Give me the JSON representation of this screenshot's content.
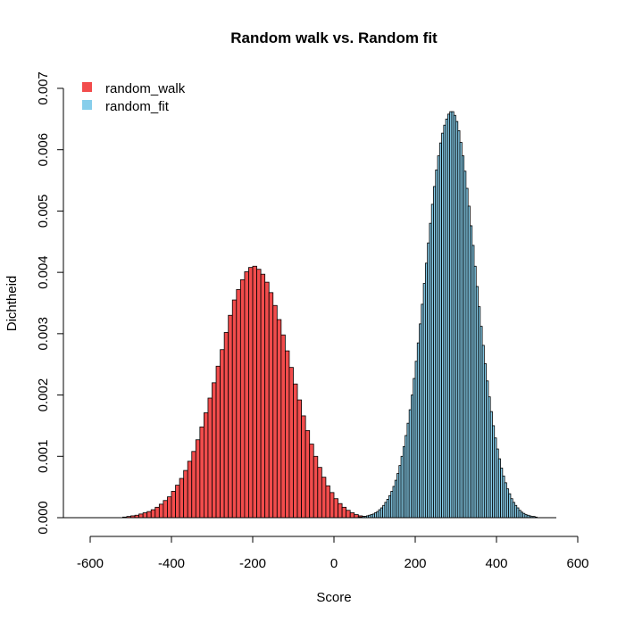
{
  "chart_data": {
    "type": "histogram",
    "title": "Random walk vs. Random fit",
    "xlabel": "Score",
    "ylabel": "Dichtheid",
    "xlim": [
      -600,
      600
    ],
    "ylim": [
      0,
      0.007
    ],
    "x_ticks": [
      -600,
      -400,
      -200,
      0,
      200,
      400,
      600
    ],
    "x_tick_labels": [
      "-600",
      "-400",
      "-200",
      "0",
      "200",
      "400",
      "600"
    ],
    "y_ticks": [
      0,
      0.001,
      0.002,
      0.003,
      0.004,
      0.005,
      0.006,
      0.007
    ],
    "y_tick_labels": [
      "0.000",
      "0.001",
      "0.002",
      "0.003",
      "0.004",
      "0.005",
      "0.006",
      "0.007"
    ],
    "grid": false,
    "legend": {
      "position": "top-left",
      "entries": [
        {
          "label": "random_walk",
          "color": "#f24c4c"
        },
        {
          "label": "random_fit",
          "color": "#87ceeb"
        }
      ]
    },
    "series": [
      {
        "name": "random_walk",
        "color": "#f24c4c",
        "bin_width": 10,
        "bin_start": -520,
        "densities": [
          1e-05,
          2e-05,
          3e-05,
          4e-05,
          6e-05,
          8e-05,
          0.0001,
          0.00013,
          0.00017,
          0.00022,
          0.00028,
          0.00034,
          0.00043,
          0.00053,
          0.00064,
          0.00077,
          0.00092,
          0.00108,
          0.00127,
          0.00148,
          0.00171,
          0.00195,
          0.0022,
          0.00247,
          0.00274,
          0.00302,
          0.0033,
          0.00355,
          0.00372,
          0.00388,
          0.00401,
          0.00408,
          0.0041,
          0.00405,
          0.00397,
          0.00384,
          0.00367,
          0.00346,
          0.00323,
          0.00298,
          0.00272,
          0.00245,
          0.00218,
          0.00192,
          0.00166,
          0.00142,
          0.0012,
          0.001,
          0.00082,
          0.00066,
          0.00052,
          0.00041,
          0.00031,
          0.00023,
          0.00017,
          0.00012,
          8e-05,
          5e-05,
          3e-05,
          2e-05,
          1e-05
        ]
      },
      {
        "name": "random_fit",
        "color": "#87ceeb",
        "bin_width": 5,
        "bin_start": 60,
        "densities": [
          1e-05,
          1e-05,
          2e-05,
          2e-05,
          3e-05,
          4e-05,
          5e-05,
          6e-05,
          8e-05,
          0.0001,
          0.00013,
          0.00016,
          0.0002,
          0.00025,
          0.0003,
          0.00036,
          0.00043,
          0.00051,
          0.00061,
          0.00072,
          0.00085,
          0.001,
          0.00116,
          0.00134,
          0.00154,
          0.00176,
          0.002,
          0.00227,
          0.00255,
          0.00285,
          0.00316,
          0.00348,
          0.00382,
          0.00415,
          0.00448,
          0.0048,
          0.00511,
          0.0054,
          0.00567,
          0.0059,
          0.00611,
          0.00627,
          0.0064,
          0.0065,
          0.00658,
          0.00662,
          0.00662,
          0.00656,
          0.00646,
          0.00631,
          0.00612,
          0.0059,
          0.00565,
          0.00537,
          0.00508,
          0.00476,
          0.00444,
          0.0041,
          0.00377,
          0.00344,
          0.00312,
          0.00281,
          0.00251,
          0.00223,
          0.00197,
          0.00173,
          0.0015,
          0.0013,
          0.00112,
          0.00096,
          0.00081,
          0.00068,
          0.00057,
          0.00047,
          0.00039,
          0.00031,
          0.00025,
          0.0002,
          0.00016,
          0.00012,
          9e-05,
          7e-05,
          5e-05,
          4e-05,
          3e-05,
          2e-05,
          2e-05,
          1e-05
        ]
      }
    ]
  }
}
